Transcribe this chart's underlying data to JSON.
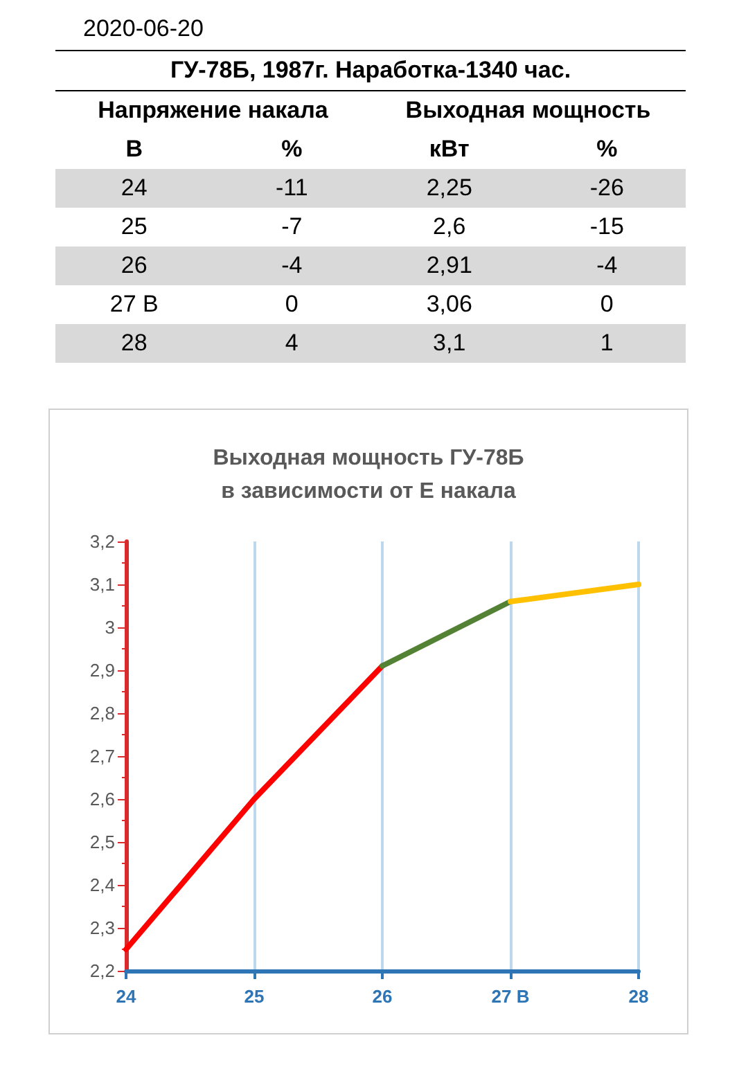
{
  "chart_data": {
    "type": "line",
    "title": "Выходная мощность ГУ-78Б\nв зависимости от Е накала",
    "categories": [
      "24",
      "25",
      "26",
      "27 В",
      "28"
    ],
    "series": [
      {
        "color": "#ff0000",
        "values": [
          2.25,
          2.6,
          2.91,
          null,
          null
        ]
      },
      {
        "color": "#548235",
        "values": [
          null,
          null,
          2.91,
          3.06,
          null
        ]
      },
      {
        "color": "#ffc000",
        "values": [
          null,
          null,
          null,
          3.06,
          3.1
        ]
      }
    ],
    "ylim": [
      2.2,
      3.2
    ],
    "yticks": [
      {
        "value": 2.2,
        "label": "2,2"
      },
      {
        "value": 2.3,
        "label": "2,3"
      },
      {
        "value": 2.4,
        "label": "2,4"
      },
      {
        "value": 2.5,
        "label": "2,5"
      },
      {
        "value": 2.6,
        "label": "2,6"
      },
      {
        "value": 2.7,
        "label": "2,7"
      },
      {
        "value": 2.8,
        "label": "2,8"
      },
      {
        "value": 2.9,
        "label": "2,9"
      },
      {
        "value": 3,
        "label": "3"
      },
      {
        "value": 3.1,
        "label": "3,1"
      },
      {
        "value": 3.2,
        "label": "3,2"
      }
    ],
    "grid": "x",
    "marker": "none",
    "line_style": "solid",
    "annotations": [
      "2020-06-20",
      "ГУ-78Б,  1987г.  Наработка-1340 час.",
      "Напряжение накала",
      "Выходная мощность",
      "В",
      "%",
      "кВт",
      "%",
      "24",
      "-11",
      "2,25",
      "-26",
      "25",
      "-7",
      "2,6",
      "-15",
      "26",
      "-4",
      "2,91",
      "-4",
      "27 В",
      "0",
      "3,06",
      "0",
      "28",
      "4",
      "3,1",
      "1"
    ]
  }
}
